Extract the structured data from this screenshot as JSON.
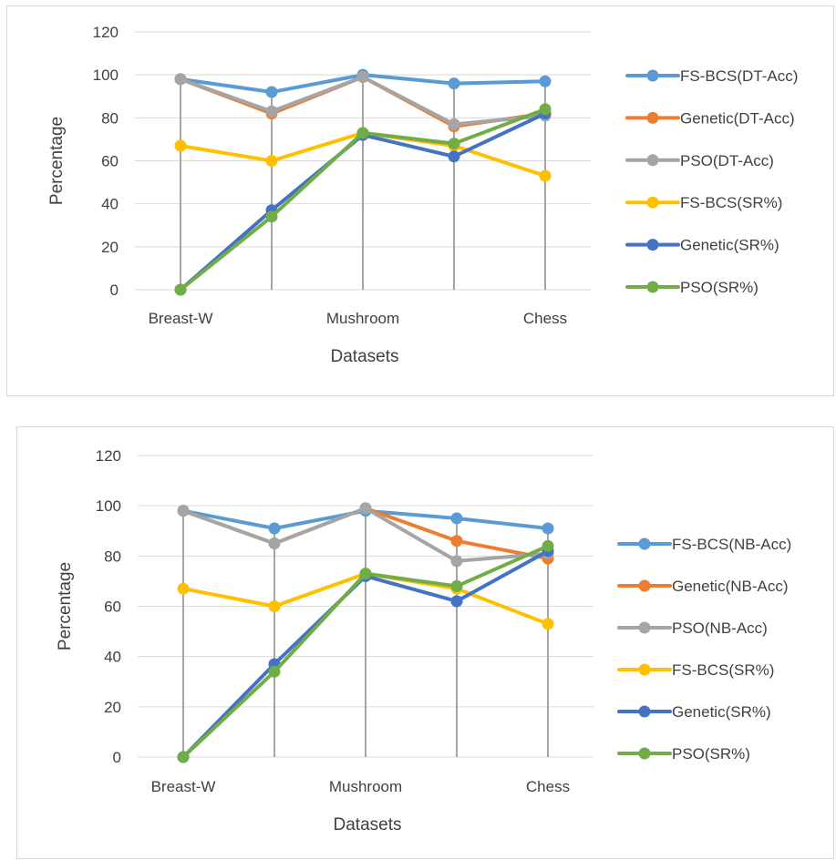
{
  "colors": {
    "blue_light": "#5B9BD5",
    "orange": "#ED7D31",
    "gray": "#A5A5A5",
    "yellow": "#FFC000",
    "blue_dark": "#4472C4",
    "green": "#70AD47",
    "gridline": "#d9d9d9",
    "dropline": "#a5a5a5"
  },
  "chart_data": [
    {
      "type": "line",
      "xlabel": "Datasets",
      "ylabel": "Percentage",
      "ylim": [
        0,
        120
      ],
      "yticks": [
        "0",
        "20",
        "40",
        "60",
        "80",
        "100",
        "120"
      ],
      "categories": [
        "Breast-W",
        "",
        "Mushroom",
        "",
        "Chess"
      ],
      "grid": true,
      "drop_lines": true,
      "legend": "right",
      "series": [
        {
          "name": "FS-BCS(DT-Acc)",
          "color": "#5B9BD5",
          "values": [
            98,
            92,
            100,
            96,
            97
          ]
        },
        {
          "name": "Genetic(DT-Acc)",
          "color": "#ED7D31",
          "values": [
            98,
            82,
            99,
            76,
            82
          ]
        },
        {
          "name": "PSO(DT-Acc)",
          "color": "#A5A5A5",
          "values": [
            98,
            83,
            99,
            77,
            81
          ]
        },
        {
          "name": "FS-BCS(SR%)",
          "color": "#FFC000",
          "values": [
            67,
            60,
            73,
            67,
            53
          ]
        },
        {
          "name": "Genetic(SR%)",
          "color": "#4472C4",
          "values": [
            0,
            37,
            72,
            62,
            82
          ]
        },
        {
          "name": "PSO(SR%)",
          "color": "#70AD47",
          "values": [
            0,
            34,
            73,
            68,
            84
          ]
        }
      ]
    },
    {
      "type": "line",
      "xlabel": "Datasets",
      "ylabel": "Percentage",
      "ylim": [
        0,
        120
      ],
      "yticks": [
        "0",
        "20",
        "40",
        "60",
        "80",
        "100",
        "120"
      ],
      "categories": [
        "Breast-W",
        "",
        "Mushroom",
        "",
        "Chess"
      ],
      "grid": true,
      "drop_lines": true,
      "legend": "right",
      "series": [
        {
          "name": "FS-BCS(NB-Acc)",
          "color": "#5B9BD5",
          "values": [
            98,
            91,
            98,
            95,
            91
          ]
        },
        {
          "name": "Genetic(NB-Acc)",
          "color": "#ED7D31",
          "values": [
            98,
            85,
            99,
            86,
            79
          ]
        },
        {
          "name": "PSO(NB-Acc)",
          "color": "#A5A5A5",
          "values": [
            98,
            85,
            99,
            78,
            81
          ]
        },
        {
          "name": "FS-BCS(SR%)",
          "color": "#FFC000",
          "values": [
            67,
            60,
            73,
            67,
            53
          ]
        },
        {
          "name": "Genetic(SR%)",
          "color": "#4472C4",
          "values": [
            0,
            37,
            72,
            62,
            82
          ]
        },
        {
          "name": "PSO(SR%)",
          "color": "#70AD47",
          "values": [
            0,
            34,
            73,
            68,
            84
          ]
        }
      ]
    }
  ]
}
